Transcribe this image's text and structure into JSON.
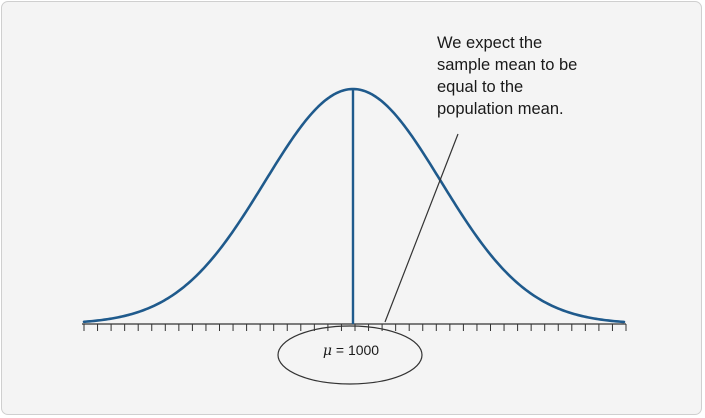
{
  "figure": {
    "annotation_lines": [
      "We expect the",
      "sample mean to be",
      "equal to the",
      "population mean."
    ],
    "mean_symbol": "μ",
    "mean_equals": " = ",
    "mean_value": "1000"
  },
  "colors": {
    "curve": "#1f5a8c",
    "axis": "#333333",
    "pointer_line": "#333333",
    "ellipse": "#333333",
    "panel_background": "#f4f4f4"
  },
  "chart_data": {
    "type": "line",
    "distribution": "normal",
    "mean": 1000,
    "tick_count": 40,
    "xlabel": "",
    "ylabel": ""
  }
}
